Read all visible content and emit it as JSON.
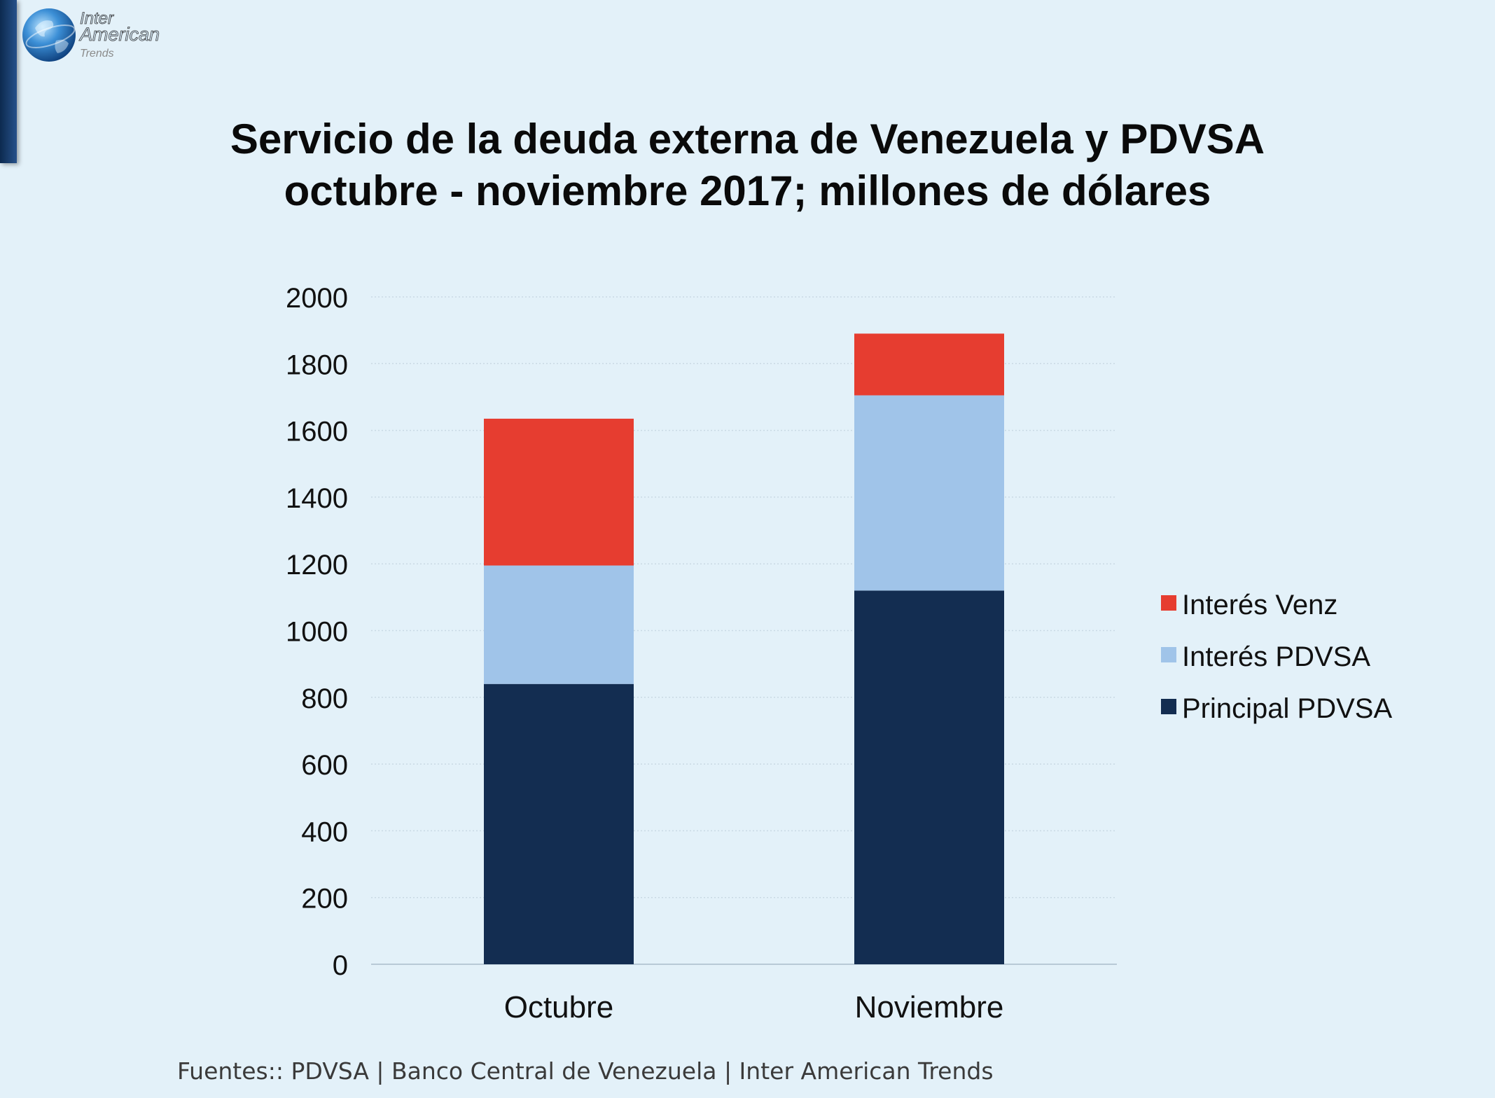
{
  "brand": {
    "line1": "Inter",
    "line2": "American",
    "line3": "Trends"
  },
  "chart_data": {
    "type": "bar",
    "stacked": true,
    "title_line1": "Servicio de la deuda externa de Venezuela y PDVSA",
    "title_line2": "octubre - noviembre 2017; millones de dólares",
    "categories": [
      "Octubre",
      "Noviembre"
    ],
    "series": [
      {
        "name": "Principal PDVSA",
        "values": [
          840,
          1120
        ],
        "color": "#132d51"
      },
      {
        "name": "Interés PDVSA",
        "values": [
          355,
          585
        ],
        "color": "#a0c4e9"
      },
      {
        "name": "Interés Venz",
        "values": [
          440,
          185
        ],
        "color": "#e63d30"
      }
    ],
    "legend_order": [
      "Interés Venz",
      "Interés PDVSA",
      "Principal PDVSA"
    ],
    "legend_position": "right",
    "ylim": [
      0,
      2000
    ],
    "yticks": [
      0,
      200,
      400,
      600,
      800,
      1000,
      1200,
      1400,
      1600,
      1800,
      2000
    ],
    "grid": true,
    "xlabel": "",
    "ylabel": ""
  },
  "source": "Fuentes:: PDVSA | Banco Central de Venezuela | Inter American Trends"
}
